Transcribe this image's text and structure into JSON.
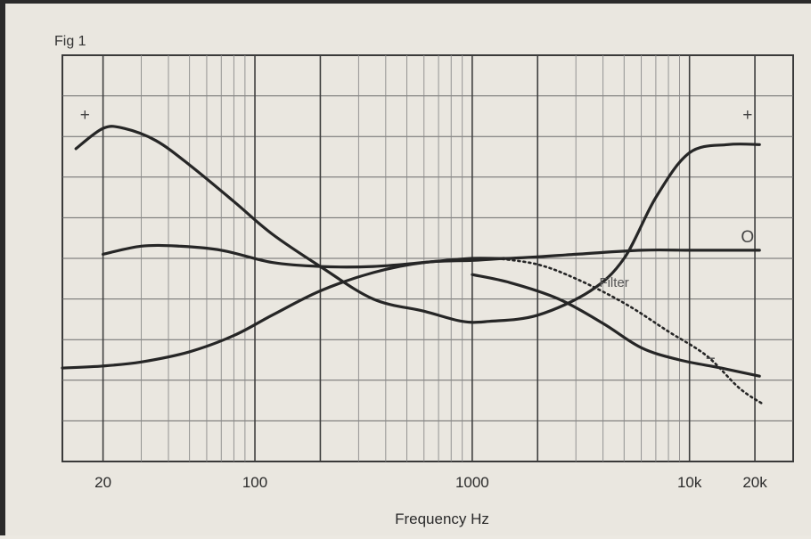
{
  "figure_label": "Fig 1",
  "chart_data": {
    "type": "line",
    "title": "Fig 1",
    "xlabel": "Frequency Hz",
    "ylabel": "",
    "x_scale": "log",
    "xlim": [
      13,
      30000
    ],
    "ylim": [
      -5,
      5
    ],
    "grid": true,
    "x_tick_labels": [
      {
        "value": 20,
        "label": "20"
      },
      {
        "value": 100,
        "label": "100"
      },
      {
        "value": 1000,
        "label": "1000"
      },
      {
        "value": 10000,
        "label": "10k"
      },
      {
        "value": 20000,
        "label": "20k"
      }
    ],
    "series": [
      {
        "style": "solid",
        "x": [
          15,
          20,
          25,
          35,
          50,
          80,
          120,
          200,
          350,
          600,
          900,
          1200,
          2000,
          3500,
          5000,
          7000,
          10000,
          15000,
          21000
        ],
        "y": [
          2.7,
          3.2,
          3.2,
          2.9,
          2.3,
          1.4,
          0.6,
          -0.2,
          -1.0,
          -1.3,
          -1.55,
          -1.55,
          -1.4,
          -0.8,
          0.0,
          1.5,
          2.6,
          2.8,
          2.8
        ]
      },
      {
        "style": "solid",
        "x": [
          20,
          30,
          45,
          70,
          120,
          200,
          350,
          600,
          1000,
          1500,
          3000,
          6000,
          10000,
          15000,
          21000
        ],
        "y": [
          0.1,
          0.3,
          0.3,
          0.2,
          -0.1,
          -0.2,
          -0.2,
          -0.1,
          0.0,
          0.0,
          0.1,
          0.2,
          0.2,
          0.2,
          0.2
        ]
      },
      {
        "style": "solid",
        "x": [
          13,
          20,
          30,
          50,
          80,
          120,
          200,
          350,
          600,
          1000,
          1400
        ],
        "y": [
          -2.7,
          -2.65,
          -2.55,
          -2.3,
          -1.9,
          -1.4,
          -0.8,
          -0.35,
          -0.1,
          -0.05,
          0.0
        ]
      },
      {
        "style": "solid",
        "x": [
          1000,
          1500,
          2500,
          4000,
          6000,
          9000,
          14000,
          21000
        ],
        "y": [
          -0.4,
          -0.6,
          -1.0,
          -1.6,
          -2.2,
          -2.5,
          -2.7,
          -2.9
        ]
      },
      {
        "name": "Filter",
        "style": "dotted",
        "x": [
          1300,
          2000,
          3000,
          5000,
          8000,
          12000,
          17000,
          22000
        ],
        "y": [
          0.0,
          -0.15,
          -0.5,
          -1.1,
          -1.8,
          -2.4,
          -3.2,
          -3.6
        ]
      }
    ],
    "annotations": [
      {
        "text": "+",
        "x": 16.5,
        "y": 3.4
      },
      {
        "text": "+",
        "x": 18500,
        "y": 3.4
      },
      {
        "text": "O",
        "x": 18500,
        "y": 0.4
      },
      {
        "text": "−",
        "x": 12500,
        "y": -2.6
      },
      {
        "text": "Filter",
        "x": 4500,
        "y": -0.7
      }
    ]
  }
}
